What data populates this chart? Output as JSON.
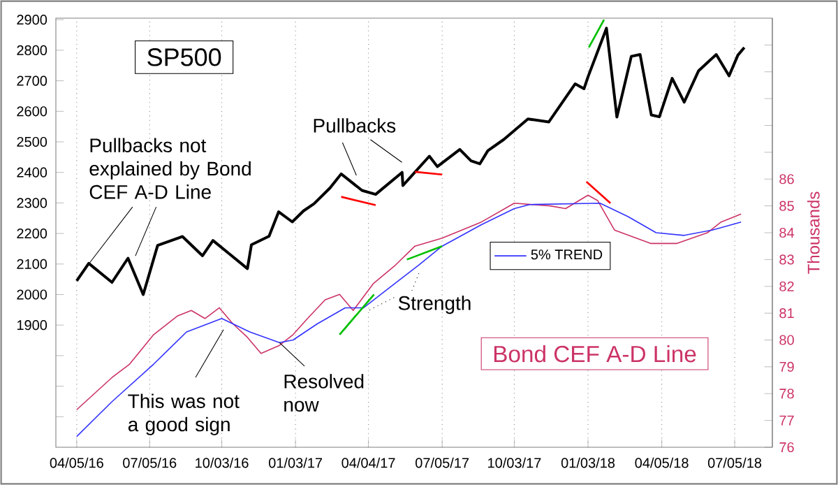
{
  "chart_data": {
    "type": "line",
    "xlabel": null,
    "y2label": "Thousands",
    "annotations": [
      {
        "text": "Pullbacks not explained by Bond CEF A-D Line",
        "x": "2016-04-20",
        "y": 2100
      },
      {
        "text": "Pullbacks",
        "x": "2017-03-20",
        "y": 2390
      },
      "This was not a good sign",
      "Resolved now",
      "Strength"
    ],
    "xlim": [
      "2016-03-10",
      "2018-08-21"
    ],
    "xticks": [
      {
        "value": "2016-04-05",
        "label": "04/05/16"
      },
      {
        "value": "2016-07-05",
        "label": "07/05/16"
      },
      {
        "value": "2016-10-03",
        "label": "10/03/16"
      },
      {
        "value": "2017-01-03",
        "label": "01/03/17"
      },
      {
        "value": "2017-04-04",
        "label": "04/04/17"
      },
      {
        "value": "2017-07-05",
        "label": "07/05/17"
      },
      {
        "value": "2017-10-03",
        "label": "10/03/17"
      },
      {
        "value": "2018-01-03",
        "label": "01/03/18"
      },
      {
        "value": "2018-04-05",
        "label": "04/05/18"
      },
      {
        "value": "2018-07-05",
        "label": "07/05/18"
      }
    ],
    "ylim": [
      1500,
      2905
    ],
    "yticks": [
      {
        "value": 1600,
        "label": null
      },
      {
        "value": 1700,
        "label": null
      },
      {
        "value": 1800,
        "label": null
      },
      1900,
      2000,
      2100,
      2200,
      2300,
      2400,
      2500,
      2600,
      2700,
      2800,
      2900
    ],
    "y2lim": [
      76,
      92
    ],
    "y2ticks": [
      76,
      77,
      78,
      79,
      80,
      81,
      82,
      83,
      84,
      85,
      86,
      {
        "value": 87,
        "label": null
      },
      {
        "value": 88,
        "label": null
      },
      {
        "value": 89,
        "label": null
      },
      {
        "value": 90,
        "label": null
      },
      {
        "value": 91,
        "label": null
      }
    ],
    "grid": "x",
    "legend": "right",
    "series": [
      {
        "name": "SP500",
        "color": "#000000",
        "x": [
          "2016-04-05",
          "2016-04-20",
          "2016-05-19",
          "2016-06-08",
          "2016-06-27",
          "2016-07-15",
          "2016-08-15",
          "2016-09-09",
          "2016-09-22",
          "2016-10-13",
          "2016-11-04",
          "2016-11-09",
          "2016-12-01",
          "2016-12-13",
          "2016-12-30",
          "2017-01-13",
          "2017-01-26",
          "2017-02-15",
          "2017-03-01",
          "2017-03-27",
          "2017-04-13",
          "2017-05-16",
          "2017-05-17",
          "2017-06-19",
          "2017-06-29",
          "2017-07-27",
          "2017-08-10",
          "2017-08-21",
          "2017-08-31",
          "2017-09-20",
          "2017-10-20",
          "2017-11-15",
          "2017-12-18",
          "2017-12-29",
          "2018-01-03",
          "2018-01-26",
          "2018-02-05",
          "2018-02-08",
          "2018-02-26",
          "2018-03-09",
          "2018-03-23",
          "2018-04-02",
          "2018-04-18",
          "2018-05-03",
          "2018-05-21",
          "2018-06-12",
          "2018-06-28",
          "2018-07-09",
          "2018-07-17"
        ],
        "values": [
          2045,
          2102,
          2040,
          2119,
          2000,
          2161,
          2190,
          2127,
          2177,
          2132,
          2085,
          2163,
          2191,
          2271,
          2238,
          2274,
          2297,
          2349,
          2395,
          2341,
          2328,
          2400,
          2357,
          2453,
          2419,
          2475,
          2438,
          2428,
          2471,
          2508,
          2575,
          2565,
          2690,
          2674,
          2713,
          2872,
          2649,
          2581,
          2780,
          2786,
          2588,
          2582,
          2708,
          2630,
          2733,
          2786,
          2716,
          2784,
          2809
        ]
      },
      {
        "name": "Bond CEF A-D Line",
        "color": "#cc3366",
        "axis": "y2",
        "x": [
          "2016-04-05",
          "2016-05-19",
          "2016-06-10",
          "2016-07-10",
          "2016-08-09",
          "2016-08-26",
          "2016-09-12",
          "2016-09-30",
          "2016-10-17",
          "2016-11-04",
          "2016-11-21",
          "2016-12-14",
          "2016-12-31",
          "2017-01-18",
          "2017-02-09",
          "2017-02-27",
          "2017-03-16",
          "2017-04-10",
          "2017-05-08",
          "2017-06-01",
          "2017-07-05",
          "2017-08-23",
          "2017-10-03",
          "2017-11-17",
          "2017-12-06",
          "2018-01-03",
          "2018-01-15",
          "2018-02-05",
          "2018-03-22",
          "2018-04-24",
          "2018-06-01",
          "2018-06-18",
          "2018-07-13"
        ],
        "values": [
          77.4,
          78.6,
          79.1,
          80.2,
          80.9,
          81.1,
          80.8,
          81.2,
          80.6,
          80.1,
          79.5,
          79.8,
          80.2,
          80.8,
          81.5,
          81.7,
          81.1,
          82.1,
          82.8,
          83.5,
          83.8,
          84.4,
          85.1,
          85.0,
          84.9,
          85.4,
          85.2,
          84.1,
          83.6,
          83.6,
          84.0,
          84.4,
          84.7
        ]
      },
      {
        "name": "5% TREND",
        "color": "#3333ff",
        "axis": "y2",
        "x": [
          "2016-04-05",
          "2016-05-19",
          "2016-07-10",
          "2016-08-20",
          "2016-10-03",
          "2016-11-07",
          "2016-12-14",
          "2016-12-31",
          "2017-01-30",
          "2017-03-06",
          "2017-03-29",
          "2017-04-28",
          "2017-06-06",
          "2017-07-05",
          "2017-08-23",
          "2017-10-03",
          "2017-10-22",
          "2018-01-18",
          "2018-02-22",
          "2018-03-29",
          "2018-05-03",
          "2018-06-07",
          "2018-07-13"
        ],
        "values": [
          76.4,
          77.7,
          79.1,
          80.3,
          80.8,
          80.3,
          79.9,
          80.0,
          80.6,
          81.2,
          81.2,
          81.9,
          82.8,
          83.5,
          84.3,
          84.9,
          85.05,
          85.1,
          84.6,
          84.0,
          83.9,
          84.1,
          84.4
        ]
      },
      {
        "color": "#ff0000",
        "x": [
          "2017-03-01",
          "2017-04-13"
        ],
        "values": [
          2320,
          2293
        ]
      },
      {
        "color": "#ff0000",
        "x": [
          "2017-06-01",
          "2017-07-05"
        ],
        "values": [
          2402,
          2393
        ]
      },
      {
        "color": "#00c000",
        "x": [
          "2018-01-04",
          "2018-01-23"
        ],
        "values": [
          2809,
          2900
        ]
      },
      {
        "color": "#ff0000",
        "axis": "y2",
        "x": [
          "2018-01-01",
          "2018-01-31"
        ],
        "values": [
          85.9,
          85.1
        ]
      },
      {
        "color": "#00c000",
        "axis": "y2",
        "x": [
          "2017-05-22",
          "2017-07-05"
        ],
        "values": [
          83.0,
          83.5
        ]
      },
      {
        "color": "#00c000",
        "axis": "y2",
        "x": [
          "2017-02-27",
          "2017-04-11"
        ],
        "values": [
          80.2,
          81.7
        ]
      }
    ]
  }
}
